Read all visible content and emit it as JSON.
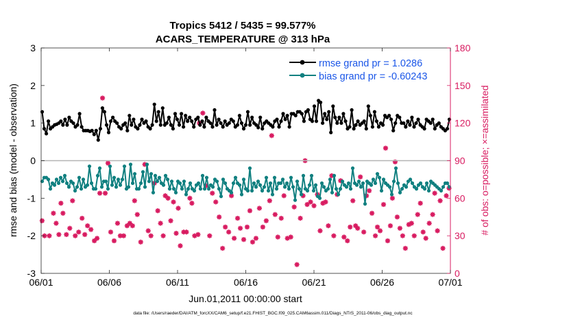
{
  "chart_data": {
    "type": "line",
    "title": "Tropics 5412 / 5435 = 99.577%",
    "subtitle": "ACARS_TEMPERATURE @ 313 hPa",
    "xlabel": "Jun.01,2011 00:00:00 start",
    "ylabel_left": "rmse and bias (model - observation)",
    "ylabel_right": "# of obs: o=possible; ×=assimilated",
    "footer": "data file: /Users/raeder/DAI/ATM_forcXX/CAM6_setup/f.e21.FHIST_BGC.f09_025.CAM6assim.011/Diags_NTrS_2011-06/obs_diag_output.nc",
    "xlim": [
      0,
      30
    ],
    "ylim_left": [
      -3,
      3
    ],
    "ylim_right": [
      0,
      180
    ],
    "x_ticks": [
      0,
      5,
      10,
      15,
      20,
      25,
      30
    ],
    "x_tick_labels": [
      "06/01",
      "06/06",
      "06/11",
      "06/16",
      "06/21",
      "06/26",
      "07/01"
    ],
    "y_ticks_left": [
      -3,
      -2,
      -1,
      0,
      1,
      2,
      3
    ],
    "y_ticks_right": [
      0,
      30,
      60,
      90,
      120,
      150,
      180
    ],
    "colors": {
      "rmse": "#000000",
      "bias": "#108080",
      "obs": "#d81b60",
      "zero_line": "#b3b3b3",
      "legend_text": "#1a56e8",
      "right_axis": "#d81b60"
    },
    "series": [
      {
        "name": "rmse grand pr = 1.0286",
        "axis": "left",
        "values": [
          1.3,
          0.85,
          0.72,
          1.05,
          0.85,
          0.9,
          0.95,
          0.97,
          1.0,
          1.05,
          0.95,
          1.1,
          0.95,
          1.15,
          1.05,
          1.0,
          0.9,
          0.95,
          1.25,
          0.9,
          0.8,
          0.8,
          0.8,
          0.78,
          0.8,
          0.7,
          0.8,
          0.55,
          0.85,
          1.4,
          1.3,
          0.95,
          0.75,
          1.05,
          1.15,
          1.05,
          1.0,
          0.9,
          0.85,
          0.95,
          1.0,
          0.8,
          1.2,
          0.95,
          1.1,
          0.9,
          0.85,
          0.95,
          1.1,
          1.0,
          1.05,
          0.9,
          0.85,
          0.95,
          1.5,
          1.05,
          1.3,
          0.95,
          1.4,
          0.95,
          1.0,
          1.15,
          0.95,
          0.85,
          1.25,
          1.1,
          0.95,
          1.25,
          0.9,
          1.2,
          1.05,
          1.15,
          1.05,
          0.9,
          1.1,
          1.15,
          0.95,
          1.05,
          0.9,
          1.15,
          1.05,
          1.0,
          0.9,
          1.35,
          0.95,
          1.1,
          1.0,
          0.9,
          1.05,
          0.95,
          1.0,
          1.1,
          1.05,
          0.9,
          0.95,
          1.2,
          1.0,
          0.85,
          0.95,
          1.3,
          0.95,
          1.15,
          1.0,
          0.95,
          0.88,
          1.15,
          0.85,
          1.0,
          1.05,
          1.0,
          0.95,
          0.9,
          1.05,
          1.1,
          0.9,
          1.05,
          1.25,
          1.1,
          1.2,
          0.9,
          1.25,
          1.25,
          1.2,
          1.3,
          1.3,
          1.25,
          1.05,
          1.3,
          1.35,
          1.1,
          1.05,
          1.45,
          1.05,
          1.6,
          1.55,
          1.0,
          1.25,
          1.1,
          1.3,
          0.75,
          1.45,
          1.15,
          1.0,
          1.15,
          1.0,
          1.25,
          1.05,
          0.85,
          0.9,
          1.35,
          0.85,
          0.95,
          1.05,
          0.95,
          1.0,
          1.05,
          0.85,
          1.45,
          1.2,
          0.9,
          1.3,
          1.05,
          0.9,
          1.0,
          0.95,
          1.2,
          1.15,
          1.2,
          1.1,
          0.8,
          1.0,
          1.2,
          1.15,
          1.0,
          1.0,
          0.9,
          1.05,
          0.95,
          1.15,
          0.9,
          1.0,
          1.1,
          0.95,
          0.9,
          0.85,
          1.1,
          1.05,
          1.0,
          1.1,
          0.85,
          0.95,
          1.0,
          0.9,
          0.85,
          0.8,
          0.85,
          1.1
        ]
      },
      {
        "name": "bias grand pr = -0.60243",
        "axis": "left",
        "values": [
          -0.55,
          -0.45,
          -0.45,
          -0.5,
          -0.75,
          -0.6,
          -0.65,
          -0.5,
          -0.6,
          -0.45,
          -0.55,
          -0.4,
          -0.6,
          -0.7,
          -0.55,
          -0.6,
          -0.8,
          -0.7,
          -0.45,
          -0.75,
          -0.5,
          -0.7,
          -0.65,
          -0.15,
          -0.6,
          -0.75,
          -0.75,
          -0.4,
          -0.2,
          -0.7,
          -0.55,
          -0.55,
          -0.75,
          -0.15,
          -0.65,
          -0.45,
          -0.7,
          -0.5,
          -0.65,
          -0.5,
          -0.15,
          -0.75,
          -0.7,
          -0.1,
          -0.6,
          -0.35,
          -0.75,
          -0.75,
          -0.6,
          -0.3,
          -0.7,
          -0.1,
          -0.55,
          -0.35,
          -0.85,
          -0.4,
          -0.55,
          -0.45,
          -0.6,
          -0.65,
          -0.4,
          -0.5,
          -0.75,
          -0.55,
          -0.75,
          -0.85,
          -0.55,
          -0.6,
          -0.75,
          -0.55,
          -0.9,
          -0.75,
          -0.6,
          -0.75,
          -0.8,
          -0.65,
          -0.6,
          -0.75,
          -0.4,
          -0.75,
          -0.45,
          -0.75,
          -0.65,
          -0.7,
          -0.5,
          -0.55,
          -0.75,
          -0.95,
          -0.5,
          -0.6,
          -0.75,
          -0.8,
          -0.85,
          -0.6,
          -0.45,
          -0.6,
          -0.65,
          -0.9,
          -0.5,
          -0.75,
          -0.8,
          -0.2,
          -0.8,
          -0.6,
          -0.7,
          -0.55,
          -0.65,
          -0.8,
          -0.7,
          -0.45,
          -0.8,
          -0.6,
          -0.9,
          -0.45,
          -0.75,
          -0.6,
          -0.6,
          -0.5,
          -0.7,
          -0.6,
          -0.75,
          -0.45,
          -0.7,
          -1.05,
          -0.55,
          -0.75,
          -0.9,
          -0.4,
          -0.75,
          -0.8,
          -0.65,
          -0.4,
          -0.8,
          -0.65,
          -0.95,
          -1.0,
          -0.6,
          -0.7,
          -0.8,
          -0.75,
          -0.5,
          -0.85,
          -0.4,
          -0.75,
          -0.9,
          -0.75,
          -0.55,
          -0.65,
          -0.7,
          -0.6,
          -0.75,
          -0.2,
          -0.6,
          -0.65,
          -0.55,
          -0.7,
          -0.6,
          -1.15,
          -0.55,
          -0.6,
          -0.65,
          -0.5,
          -0.6,
          -0.35,
          -0.45,
          -0.8,
          -0.5,
          -0.6,
          -0.65,
          -0.7,
          -0.9,
          -0.55,
          -0.2,
          -0.6,
          -0.85,
          -0.75,
          -0.65,
          -0.7,
          -0.55,
          -0.5,
          -0.6,
          -0.7,
          -0.75,
          -0.65,
          -0.6,
          -0.7,
          -0.75,
          -0.6,
          -0.8,
          -0.55,
          -0.6,
          -0.65,
          -0.7,
          -0.75,
          -0.8,
          -0.7,
          -0.6,
          -0.6,
          -0.7
        ]
      },
      {
        "name": "# of obs possible / assimilated",
        "axis": "right",
        "marker": "asterisk",
        "points": [
          [
            0.07,
            42
          ],
          [
            0.25,
            30
          ],
          [
            0.6,
            30
          ],
          [
            0.9,
            48
          ],
          [
            1.1,
            40
          ],
          [
            1.3,
            31
          ],
          [
            1.45,
            56
          ],
          [
            1.6,
            48
          ],
          [
            1.85,
            31
          ],
          [
            2.1,
            36
          ],
          [
            2.3,
            58
          ],
          [
            2.5,
            30
          ],
          [
            2.75,
            33
          ],
          [
            3.0,
            44
          ],
          [
            3.2,
            31
          ],
          [
            3.4,
            38
          ],
          [
            3.65,
            35
          ],
          [
            3.9,
            26
          ],
          [
            4.1,
            28
          ],
          [
            4.3,
            64
          ],
          [
            4.5,
            140
          ],
          [
            4.7,
            64
          ],
          [
            4.9,
            88
          ],
          [
            5.1,
            33
          ],
          [
            5.35,
            26
          ],
          [
            5.6,
            40
          ],
          [
            5.8,
            30
          ],
          [
            6.05,
            30
          ],
          [
            6.3,
            38
          ],
          [
            6.5,
            40
          ],
          [
            6.7,
            38
          ],
          [
            6.85,
            58
          ],
          [
            7.05,
            47
          ],
          [
            7.3,
            25
          ],
          [
            7.6,
            87
          ],
          [
            7.85,
            34
          ],
          [
            8.05,
            30
          ],
          [
            8.3,
            72
          ],
          [
            8.55,
            50
          ],
          [
            8.75,
            40
          ],
          [
            8.95,
            30
          ],
          [
            9.1,
            62
          ],
          [
            9.3,
            60
          ],
          [
            9.5,
            42
          ],
          [
            9.7,
            57
          ],
          [
            9.9,
            32
          ],
          [
            10.05,
            52
          ],
          [
            10.2,
            22
          ],
          [
            10.45,
            33
          ],
          [
            10.65,
            33
          ],
          [
            10.9,
            60
          ],
          [
            11.05,
            56
          ],
          [
            11.25,
            30
          ],
          [
            11.5,
            31
          ],
          [
            11.6,
            120
          ],
          [
            11.85,
            128
          ],
          [
            12.1,
            70
          ],
          [
            12.35,
            30
          ],
          [
            12.55,
            64
          ],
          [
            12.8,
            57
          ],
          [
            13.05,
            45
          ],
          [
            13.3,
            20
          ],
          [
            13.5,
            37
          ],
          [
            13.75,
            33
          ],
          [
            13.95,
            62
          ],
          [
            14.15,
            28
          ],
          [
            14.4,
            44
          ],
          [
            14.6,
            36
          ],
          [
            14.85,
            27
          ],
          [
            15.1,
            37
          ],
          [
            15.3,
            50
          ],
          [
            15.5,
            25
          ],
          [
            15.75,
            28
          ],
          [
            16.0,
            52
          ],
          [
            16.25,
            37
          ],
          [
            16.5,
            42
          ],
          [
            16.75,
            58
          ],
          [
            16.9,
            110
          ],
          [
            17.15,
            47
          ],
          [
            17.35,
            29
          ],
          [
            17.6,
            44
          ],
          [
            17.8,
            62
          ],
          [
            18.05,
            28
          ],
          [
            18.3,
            29
          ],
          [
            18.55,
            53
          ],
          [
            18.75,
            7
          ],
          [
            19.0,
            44
          ],
          [
            19.2,
            62
          ],
          [
            19.35,
            90
          ],
          [
            19.5,
            55
          ],
          [
            19.75,
            57
          ],
          [
            20.0,
            54
          ],
          [
            20.25,
            63
          ],
          [
            20.45,
            34
          ],
          [
            20.65,
            56
          ],
          [
            20.85,
            57
          ],
          [
            21.05,
            38
          ],
          [
            21.3,
            78
          ],
          [
            21.45,
            30
          ],
          [
            21.7,
            63
          ],
          [
            21.95,
            74
          ],
          [
            22.2,
            29
          ],
          [
            22.45,
            26
          ],
          [
            22.65,
            37
          ],
          [
            22.85,
            58
          ],
          [
            23.05,
            38
          ],
          [
            23.2,
            36
          ],
          [
            23.4,
            77
          ],
          [
            23.65,
            33
          ],
          [
            23.85,
            62
          ],
          [
            24.05,
            66
          ],
          [
            24.25,
            48
          ],
          [
            24.5,
            30
          ],
          [
            24.65,
            37
          ],
          [
            24.85,
            34
          ],
          [
            25.1,
            55
          ],
          [
            25.25,
            100
          ],
          [
            25.4,
            26
          ],
          [
            25.6,
            38
          ],
          [
            25.75,
            60
          ],
          [
            25.95,
            89
          ],
          [
            26.1,
            45
          ],
          [
            26.3,
            36
          ],
          [
            26.5,
            30
          ],
          [
            26.7,
            20
          ],
          [
            26.95,
            39
          ],
          [
            27.15,
            40
          ],
          [
            27.35,
            30
          ],
          [
            27.6,
            47
          ],
          [
            27.8,
            56
          ],
          [
            28.0,
            33
          ],
          [
            28.2,
            28
          ],
          [
            28.45,
            40
          ],
          [
            28.7,
            47
          ],
          [
            28.85,
            64
          ],
          [
            29.05,
            34
          ],
          [
            29.25,
            58
          ],
          [
            29.45,
            20
          ],
          [
            29.7,
            62
          ],
          [
            29.9,
            68
          ]
        ]
      }
    ]
  },
  "legend": {
    "rmse_label": "rmse grand pr = 1.0286",
    "bias_label": "bias grand pr = -0.60243"
  }
}
